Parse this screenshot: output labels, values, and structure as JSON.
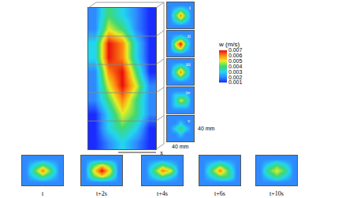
{
  "chart_data": {
    "type": "heatmap",
    "tick_labels": false,
    "colorbar": {
      "title": "w (m/s)",
      "range": [
        0.001,
        0.007
      ],
      "ticks": [
        0.001,
        0.002,
        0.003,
        0.004,
        0.005,
        0.006,
        0.007
      ]
    },
    "axis_label": "x",
    "scale_labels": [
      "40 mm",
      "40 mm"
    ],
    "column": {
      "cells": [
        [
          0.001,
          0.002,
          0.003,
          0.002,
          0.001
        ],
        [
          0.001,
          0.003,
          0.004,
          0.003,
          0.001
        ],
        [
          0.001,
          0.003,
          0.005,
          0.004,
          0.002
        ],
        [
          0.002,
          0.004,
          0.006,
          0.004,
          0.002
        ],
        [
          0.002,
          0.005,
          0.007,
          0.005,
          0.002
        ],
        [
          0.002,
          0.006,
          0.007,
          0.004,
          0.001
        ],
        [
          0.003,
          0.007,
          0.006,
          0.003,
          0.001
        ],
        [
          0.003,
          0.007,
          0.006,
          0.003,
          0.001
        ],
        [
          0.002,
          0.005,
          0.004,
          0.002,
          0.001
        ],
        [
          0.002,
          0.004,
          0.003,
          0.002,
          0.001
        ]
      ]
    },
    "cross_sections": [
      {
        "label": "i",
        "cells": [
          [
            0.002,
            0.002,
            0.002,
            0.002,
            0.002
          ],
          [
            0.002,
            0.003,
            0.004,
            0.003,
            0.002
          ],
          [
            0.002,
            0.004,
            0.006,
            0.004,
            0.002
          ],
          [
            0.002,
            0.003,
            0.004,
            0.003,
            0.002
          ],
          [
            0.002,
            0.002,
            0.002,
            0.002,
            0.002
          ]
        ]
      },
      {
        "label": "ii",
        "cells": [
          [
            0.002,
            0.002,
            0.002,
            0.002,
            0.002
          ],
          [
            0.002,
            0.004,
            0.005,
            0.003,
            0.002
          ],
          [
            0.002,
            0.005,
            0.007,
            0.004,
            0.002
          ],
          [
            0.002,
            0.003,
            0.004,
            0.003,
            0.002
          ],
          [
            0.002,
            0.002,
            0.002,
            0.002,
            0.002
          ]
        ]
      },
      {
        "label": "iii",
        "cells": [
          [
            0.002,
            0.002,
            0.002,
            0.002,
            0.002
          ],
          [
            0.002,
            0.003,
            0.004,
            0.003,
            0.002
          ],
          [
            0.002,
            0.004,
            0.006,
            0.004,
            0.002
          ],
          [
            0.002,
            0.003,
            0.004,
            0.003,
            0.002
          ],
          [
            0.002,
            0.002,
            0.002,
            0.002,
            0.002
          ]
        ]
      },
      {
        "label": "iv",
        "cells": [
          [
            0.002,
            0.002,
            0.002,
            0.002,
            0.002
          ],
          [
            0.002,
            0.003,
            0.003,
            0.003,
            0.002
          ],
          [
            0.002,
            0.003,
            0.005,
            0.004,
            0.002
          ],
          [
            0.002,
            0.003,
            0.003,
            0.003,
            0.002
          ],
          [
            0.002,
            0.002,
            0.002,
            0.002,
            0.002
          ]
        ]
      },
      {
        "label": "v",
        "cells": [
          [
            0.002,
            0.002,
            0.002,
            0.002,
            0.002
          ],
          [
            0.002,
            0.002,
            0.003,
            0.002,
            0.002
          ],
          [
            0.002,
            0.003,
            0.004,
            0.003,
            0.002
          ],
          [
            0.002,
            0.002,
            0.003,
            0.002,
            0.002
          ],
          [
            0.002,
            0.002,
            0.002,
            0.002,
            0.002
          ]
        ]
      }
    ],
    "time_series": [
      {
        "label": "t",
        "cells": [
          [
            0.002,
            0.002,
            0.002,
            0.002,
            0.002
          ],
          [
            0.002,
            0.003,
            0.004,
            0.003,
            0.002
          ],
          [
            0.002,
            0.004,
            0.006,
            0.004,
            0.002
          ],
          [
            0.002,
            0.003,
            0.004,
            0.003,
            0.002
          ],
          [
            0.002,
            0.002,
            0.002,
            0.002,
            0.002
          ]
        ]
      },
      {
        "label": "t+2s",
        "cells": [
          [
            0.002,
            0.002,
            0.002,
            0.002,
            0.002
          ],
          [
            0.002,
            0.004,
            0.005,
            0.004,
            0.002
          ],
          [
            0.002,
            0.005,
            0.007,
            0.005,
            0.002
          ],
          [
            0.002,
            0.004,
            0.005,
            0.004,
            0.002
          ],
          [
            0.002,
            0.002,
            0.002,
            0.002,
            0.002
          ]
        ]
      },
      {
        "label": "t+4s",
        "cells": [
          [
            0.002,
            0.002,
            0.002,
            0.002,
            0.002
          ],
          [
            0.002,
            0.003,
            0.004,
            0.003,
            0.002
          ],
          [
            0.002,
            0.004,
            0.006,
            0.005,
            0.002
          ],
          [
            0.002,
            0.003,
            0.004,
            0.003,
            0.002
          ],
          [
            0.002,
            0.002,
            0.002,
            0.002,
            0.002
          ]
        ]
      },
      {
        "label": "t+6s",
        "cells": [
          [
            0.002,
            0.002,
            0.002,
            0.002,
            0.002
          ],
          [
            0.002,
            0.003,
            0.004,
            0.004,
            0.002
          ],
          [
            0.002,
            0.004,
            0.006,
            0.004,
            0.002
          ],
          [
            0.002,
            0.003,
            0.004,
            0.003,
            0.002
          ],
          [
            0.002,
            0.002,
            0.002,
            0.002,
            0.002
          ]
        ]
      },
      {
        "label": "t+10s",
        "cells": [
          [
            0.002,
            0.002,
            0.002,
            0.002,
            0.002
          ],
          [
            0.002,
            0.003,
            0.004,
            0.003,
            0.002
          ],
          [
            0.002,
            0.004,
            0.005,
            0.004,
            0.002
          ],
          [
            0.002,
            0.003,
            0.004,
            0.003,
            0.002
          ],
          [
            0.002,
            0.002,
            0.002,
            0.002,
            0.002
          ]
        ]
      }
    ]
  }
}
